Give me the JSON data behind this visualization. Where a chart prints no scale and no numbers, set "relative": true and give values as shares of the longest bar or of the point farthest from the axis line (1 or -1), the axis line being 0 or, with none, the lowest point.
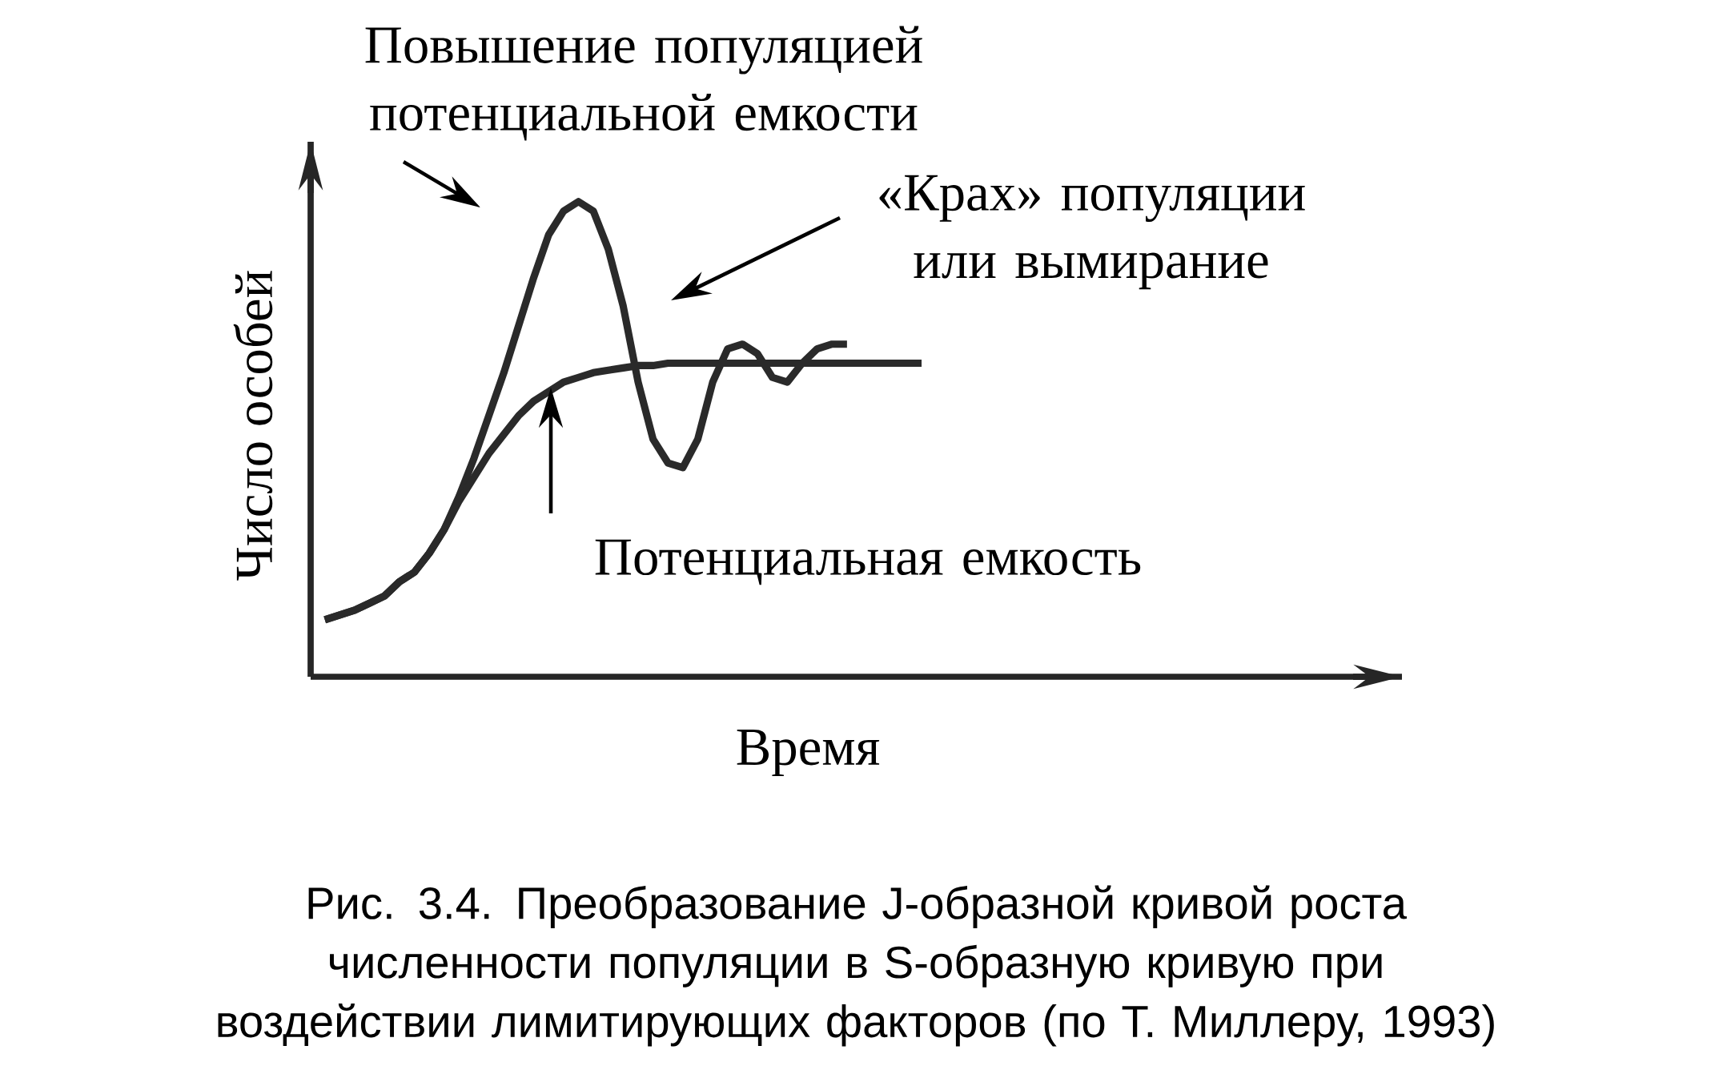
{
  "chart_data": {
    "type": "line",
    "relative": true,
    "xlabel": "Время",
    "ylabel": "Число особей",
    "categories": [
      null,
      null,
      null,
      null,
      null,
      null,
      null,
      null,
      null,
      null,
      null,
      null,
      null,
      null,
      null,
      null,
      null,
      null,
      null,
      null,
      null,
      null,
      null,
      null,
      null,
      null,
      null,
      null,
      null,
      null,
      null,
      null,
      null,
      null,
      null,
      null,
      null,
      null,
      null,
      null,
      null
    ],
    "series": [
      {
        "color": "#2a2a2a",
        "values": [
          0.12,
          0.13,
          0.14,
          0.155,
          0.17,
          0.2,
          0.22,
          0.26,
          0.31,
          0.38,
          0.46,
          0.55,
          0.64,
          0.74,
          0.84,
          0.93,
          0.98,
          1.0,
          0.98,
          0.9,
          0.78,
          0.62,
          0.5,
          0.45,
          0.44,
          0.5,
          0.62,
          0.69,
          0.7,
          0.68,
          0.63,
          0.62,
          0.66,
          0.69,
          0.7,
          0.7,
          null,
          null,
          null,
          null,
          null
        ]
      },
      {
        "color": "#2a2a2a",
        "values": [
          0.12,
          0.13,
          0.14,
          0.155,
          0.17,
          0.2,
          0.22,
          0.26,
          0.31,
          0.37,
          0.42,
          0.47,
          0.51,
          0.55,
          0.58,
          0.6,
          0.62,
          0.63,
          0.64,
          0.645,
          0.65,
          0.655,
          0.655,
          0.66,
          0.66,
          0.66,
          0.66,
          0.66,
          0.66,
          0.66,
          0.66,
          0.66,
          0.66,
          0.66,
          0.66,
          0.66,
          0.66,
          0.66,
          0.66,
          0.66,
          0.66
        ]
      }
    ],
    "annotations": [
      "Повышение популяцией потенциальной емкости",
      "«Крах» популяции или вымирание",
      "Потенциальная емкость",
      "Рис. 3.4. Преобразование J-образной кривой роста численности популяции в S-образную кривую при воздействии лимитирующих факторов (по Т. Миллеру, 1993)"
    ]
  }
}
